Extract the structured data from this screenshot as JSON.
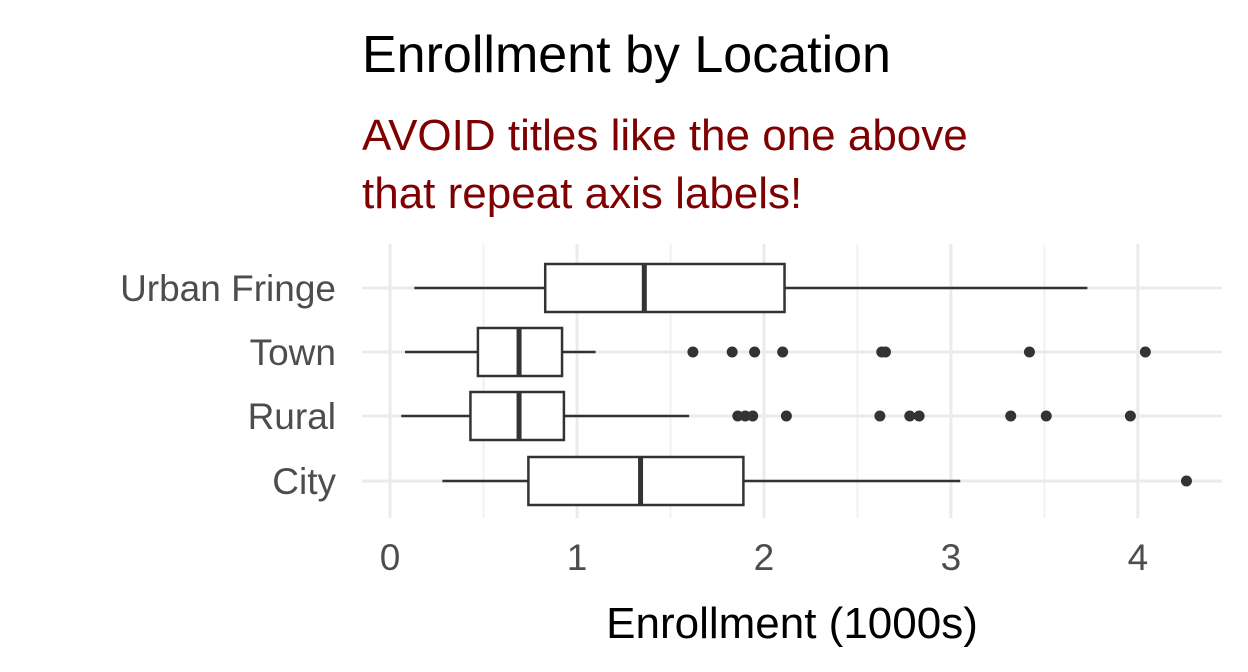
{
  "chart_data": {
    "type": "boxplot",
    "orientation": "horizontal",
    "title": "Enrollment by Location",
    "subtitle_lines": [
      "AVOID titles like the one above",
      "that repeat axis labels!"
    ],
    "subtitle_color": "#7f0000",
    "xlabel": "Enrollment (1000s)",
    "ylabel": "",
    "xlim": [
      -0.15,
      4.45
    ],
    "xticks": [
      0,
      1,
      2,
      3,
      4
    ],
    "grid": true,
    "categories": [
      "Urban Fringe",
      "Town",
      "Rural",
      "City"
    ],
    "boxes": [
      {
        "category": "Urban Fringe",
        "whisker_low": 0.13,
        "q1": 0.83,
        "median": 1.36,
        "q3": 2.11,
        "whisker_high": 3.73,
        "outliers": []
      },
      {
        "category": "Town",
        "whisker_low": 0.08,
        "q1": 0.47,
        "median": 0.69,
        "q3": 0.92,
        "whisker_high": 1.1,
        "outliers": [
          1.62,
          1.83,
          1.95,
          2.1,
          2.63,
          2.65,
          3.42,
          4.04
        ]
      },
      {
        "category": "Rural",
        "whisker_low": 0.06,
        "q1": 0.43,
        "median": 0.69,
        "q3": 0.93,
        "whisker_high": 1.6,
        "outliers": [
          1.86,
          1.9,
          1.94,
          2.12,
          2.62,
          2.78,
          2.83,
          3.32,
          3.51,
          3.96
        ]
      },
      {
        "category": "City",
        "whisker_low": 0.28,
        "q1": 0.74,
        "median": 1.34,
        "q3": 1.89,
        "whisker_high": 3.05,
        "outliers": [
          4.26
        ]
      }
    ],
    "colors": {
      "box_stroke": "#333333",
      "box_fill": "#ffffff",
      "grid_major": "#ebebeb",
      "grid_minor": "#f2f2f2",
      "point": "#333333"
    }
  }
}
